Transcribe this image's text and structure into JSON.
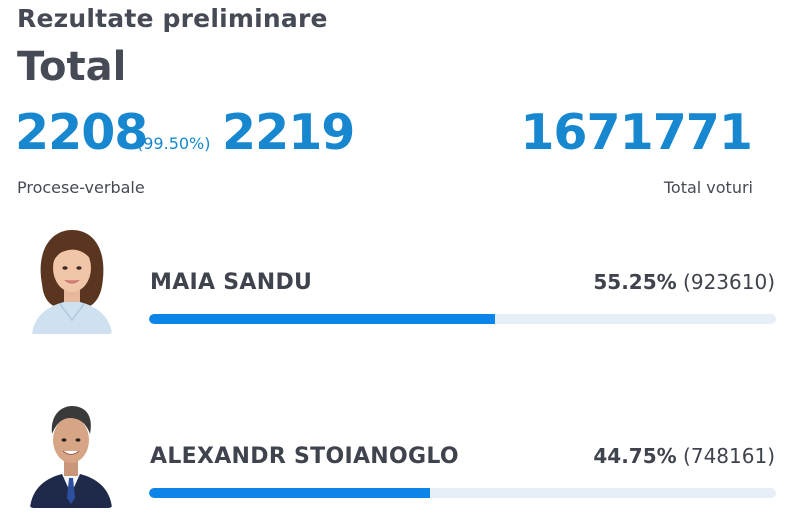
{
  "heading": "Rezultate preliminare",
  "section_title": "Total",
  "stats": {
    "pv_counted": "2208",
    "pv_percent": "(99.50%)",
    "pv_total": "2219",
    "pv_label": "Procese-verbale",
    "votes_total": "1671771",
    "votes_label": "Total voturi"
  },
  "colors": {
    "accent": "#1787cf",
    "bar_fill": "#0d84e8",
    "bar_track": "#e6eef7",
    "text": "#3e434d"
  },
  "candidates": [
    {
      "name": "MAIA SANDU",
      "percent_text": "55.25%",
      "votes_text": "(923610)",
      "share": 0.5525,
      "avatar_icon": "woman-portrait-icon"
    },
    {
      "name": "ALEXANDR STOIANOGLO",
      "percent_text": "44.75%",
      "votes_text": "(748161)",
      "share": 0.4475,
      "avatar_icon": "man-portrait-icon"
    }
  ]
}
